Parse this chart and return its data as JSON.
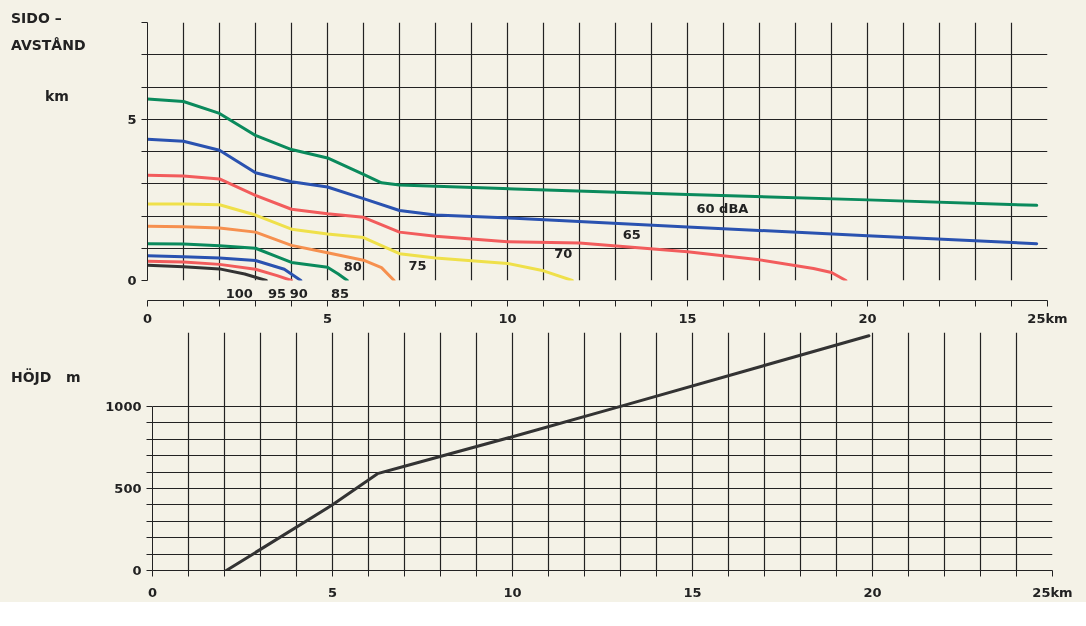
{
  "chart_data": [
    {
      "type": "line",
      "ylabel": "SIDO –\nAVSTÅND",
      "annotations": [
        "km"
      ],
      "xlim": [
        0,
        25
      ],
      "ylim": [
        0,
        8
      ],
      "xticks": [
        0,
        {
          "value": 1,
          "label": null
        },
        {
          "value": 2,
          "label": null
        },
        {
          "value": 3,
          "label": null
        },
        {
          "value": 4,
          "label": null
        },
        5,
        {
          "value": 6,
          "label": null
        },
        {
          "value": 7,
          "label": null
        },
        {
          "value": 8,
          "label": null
        },
        {
          "value": 9,
          "label": null
        },
        10,
        {
          "value": 11,
          "label": null
        },
        {
          "value": 12,
          "label": null
        },
        {
          "value": 13,
          "label": null
        },
        {
          "value": 14,
          "label": null
        },
        15,
        {
          "value": 16,
          "label": null
        },
        {
          "value": 17,
          "label": null
        },
        {
          "value": 18,
          "label": null
        },
        {
          "value": 19,
          "label": null
        },
        20,
        {
          "value": 21,
          "label": null
        },
        {
          "value": 22,
          "label": null
        },
        {
          "value": 23,
          "label": null
        },
        {
          "value": 24,
          "label": null
        },
        {
          "value": 25,
          "label": "25km"
        }
      ],
      "yticks": [
        0,
        {
          "value": 1,
          "label": null
        },
        {
          "value": 2,
          "label": null
        },
        {
          "value": 3,
          "label": null
        },
        {
          "value": 4,
          "label": null
        },
        5,
        {
          "value": 6,
          "label": null
        },
        {
          "value": 7,
          "label": null
        },
        {
          "value": 8,
          "label": null
        }
      ],
      "grid": true,
      "series": [
        {
          "name": "60 dBA",
          "color": "#0a8a5c",
          "x": [
            0,
            1,
            2,
            3,
            4,
            5,
            6,
            6.5,
            7,
            10.2,
            15,
            20,
            24.7
          ],
          "values": [
            5.63,
            5.55,
            5.18,
            4.5,
            4.06,
            3.8,
            3.29,
            3.03,
            2.96,
            2.84,
            2.67,
            2.5,
            2.33
          ]
        },
        {
          "name": "65",
          "color": "#2a52b0",
          "x": [
            0,
            1,
            2,
            3,
            4,
            5,
            6,
            7,
            8,
            10.2,
            15,
            20,
            24.7
          ],
          "values": [
            4.38,
            4.32,
            4.04,
            3.34,
            3.06,
            2.9,
            2.54,
            2.17,
            2.03,
            1.93,
            1.66,
            1.39,
            1.14
          ]
        },
        {
          "name": "70",
          "color": "#f25c5c",
          "x": [
            0,
            1,
            2,
            3,
            4,
            5,
            6,
            7,
            8,
            10,
            12,
            15,
            17,
            18.5,
            19,
            19.4
          ],
          "values": [
            3.26,
            3.24,
            3.15,
            2.64,
            2.21,
            2.07,
            1.96,
            1.5,
            1.37,
            1.2,
            1.16,
            0.89,
            0.64,
            0.37,
            0.25,
            0
          ]
        },
        {
          "name": "75",
          "color": "#efe04a",
          "x": [
            0,
            1,
            2,
            3,
            4,
            5,
            6,
            7,
            8,
            10,
            11,
            11.8
          ],
          "values": [
            2.37,
            2.37,
            2.35,
            2.03,
            1.59,
            1.44,
            1.33,
            0.83,
            0.7,
            0.53,
            0.3,
            0
          ]
        },
        {
          "name": "80",
          "color": "#f6904f",
          "x": [
            0,
            1,
            2,
            3,
            4,
            5,
            6,
            6.5,
            6.85
          ],
          "values": [
            1.68,
            1.67,
            1.63,
            1.5,
            1.09,
            0.86,
            0.63,
            0.4,
            0
          ]
        },
        {
          "name": "85",
          "color": "#0a8a5c",
          "x": [
            0,
            1,
            2,
            3,
            4,
            5,
            5.3,
            5.55
          ],
          "values": [
            1.14,
            1.13,
            1.08,
            1.0,
            0.56,
            0.41,
            0.2,
            0
          ]
        },
        {
          "name": "90",
          "color": "#2a52b0",
          "x": [
            0,
            1,
            2,
            3,
            3.8,
            4.26
          ],
          "values": [
            0.77,
            0.74,
            0.7,
            0.62,
            0.35,
            0
          ]
        },
        {
          "name": "95",
          "color": "#f25c5c",
          "x": [
            0,
            1,
            2,
            3,
            3.6,
            4.0
          ],
          "values": [
            0.6,
            0.57,
            0.5,
            0.35,
            0.15,
            0
          ]
        },
        {
          "name": "100",
          "color": "#333333",
          "x": [
            0,
            1,
            2,
            2.7,
            3.3
          ],
          "values": [
            0.47,
            0.43,
            0.36,
            0.2,
            0
          ]
        }
      ]
    },
    {
      "type": "line",
      "ylabel": "HÖJD   m",
      "xlim": [
        0,
        25
      ],
      "ylim": [
        0,
        1450
      ],
      "xticks": [
        0,
        {
          "value": 1,
          "label": null
        },
        {
          "value": 2,
          "label": null
        },
        {
          "value": 3,
          "label": null
        },
        {
          "value": 4,
          "label": null
        },
        5,
        {
          "value": 6,
          "label": null
        },
        {
          "value": 7,
          "label": null
        },
        {
          "value": 8,
          "label": null
        },
        {
          "value": 9,
          "label": null
        },
        10,
        {
          "value": 11,
          "label": null
        },
        {
          "value": 12,
          "label": null
        },
        {
          "value": 13,
          "label": null
        },
        {
          "value": 14,
          "label": null
        },
        15,
        {
          "value": 16,
          "label": null
        },
        {
          "value": 17,
          "label": null
        },
        {
          "value": 18,
          "label": null
        },
        {
          "value": 19,
          "label": null
        },
        20,
        {
          "value": 21,
          "label": null
        },
        {
          "value": 22,
          "label": null
        },
        {
          "value": 23,
          "label": null
        },
        {
          "value": 24,
          "label": null
        },
        {
          "value": 25,
          "label": "25km"
        }
      ],
      "yticks": [
        0,
        {
          "value": 100,
          "label": null
        },
        {
          "value": 200,
          "label": null
        },
        {
          "value": 300,
          "label": null
        },
        {
          "value": 400,
          "label": null
        },
        500,
        {
          "value": 600,
          "label": null
        },
        {
          "value": 700,
          "label": null
        },
        {
          "value": 800,
          "label": null
        },
        {
          "value": 900,
          "label": null
        },
        1000
      ],
      "grid": true,
      "series": [
        {
          "color": "#333333",
          "x": [
            2.05,
            5,
            6.25,
            7,
            10,
            13,
            19.9
          ],
          "values": [
            0,
            400,
            590,
            635,
            815,
            1000,
            1430
          ]
        }
      ]
    }
  ]
}
